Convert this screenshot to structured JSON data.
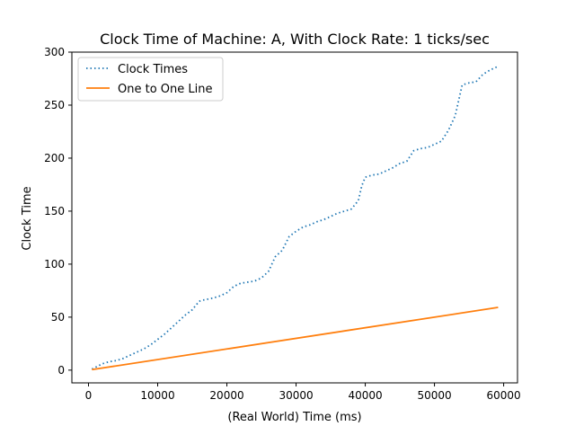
{
  "chart_data": {
    "type": "line",
    "title": "Clock Time of Machine: A, With Clock Rate: 1 ticks/sec",
    "xlabel": "(Real World) Time (ms)",
    "ylabel": "Clock Time",
    "xlim": [
      -2400,
      62000
    ],
    "ylim": [
      -12,
      300
    ],
    "xticks": [
      0,
      10000,
      20000,
      30000,
      40000,
      50000,
      60000
    ],
    "yticks": [
      0,
      50,
      100,
      150,
      200,
      250,
      300
    ],
    "grid": false,
    "legend_position": "upper-left",
    "series": [
      {
        "name": "Clock Times",
        "style": "dotted",
        "color": "#1f77b4",
        "x": [
          500,
          2000,
          3000,
          4000,
          5000,
          6000,
          7000,
          8000,
          9000,
          10000,
          11000,
          12000,
          13000,
          14000,
          15000,
          16000,
          16500,
          18000,
          19000,
          20000,
          21000,
          22000,
          23000,
          24000,
          25000,
          26000,
          26500,
          27000,
          28000,
          29000,
          30000,
          31000,
          32000,
          33000,
          34000,
          35000,
          36000,
          37000,
          38000,
          39000,
          39500,
          40000,
          41000,
          42000,
          43000,
          44000,
          45000,
          46000,
          47000,
          48000,
          49000,
          50000,
          51000,
          52000,
          53000,
          54000,
          55000,
          56000,
          57000,
          58000,
          59000
        ],
        "y": [
          1,
          6,
          8,
          9,
          11,
          14,
          17,
          20,
          24,
          29,
          34,
          40,
          46,
          52,
          57,
          65,
          66,
          68,
          70,
          73,
          79,
          82,
          83,
          84,
          87,
          93,
          100,
          107,
          113,
          126,
          131,
          135,
          137,
          140,
          142,
          145,
          148,
          150,
          152,
          160,
          174,
          182,
          184,
          185,
          188,
          191,
          195,
          197,
          207,
          209,
          210,
          213,
          216,
          226,
          240,
          269,
          271,
          272,
          279,
          283,
          286
        ]
      },
      {
        "name": "One to One Line",
        "style": "solid",
        "color": "#ff7f0e",
        "x": [
          500,
          59200
        ],
        "y": [
          0.5,
          59.2
        ]
      }
    ]
  }
}
